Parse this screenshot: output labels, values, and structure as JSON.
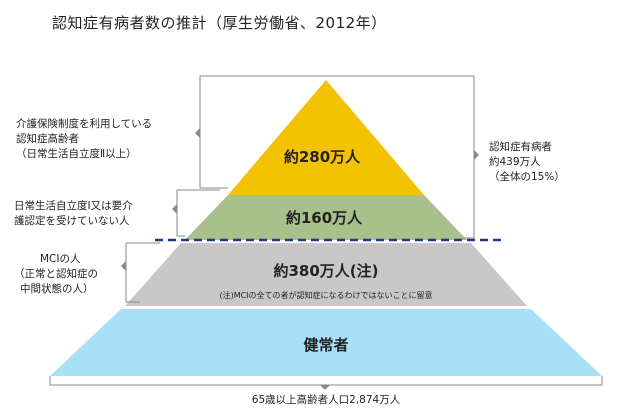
{
  "title": "認知症有病者数の推計（厚生労働省、2012年）",
  "layers": {
    "top": {
      "label": "約280万人",
      "color": "#f3c200"
    },
    "second": {
      "label": "約160万人",
      "color": "#a8c08c"
    },
    "mci": {
      "label": "約380万人(注)",
      "note": "(注)MCIの全ての者が認知症になるわけではないことに留意",
      "color": "#c8c8c8"
    },
    "healthy": {
      "label": "健常者",
      "color": "#a8e0f8"
    }
  },
  "left_notes": {
    "care": [
      "介護保険制度を利用している",
      "認知症高齢者",
      "（日常生活自立度Ⅱ以上）"
    ],
    "level1": [
      "日常生活自立度Ⅰ又は要介",
      "護認定を受けていない人"
    ],
    "mci": [
      "MCIの人",
      "（正常と認知症の",
      "中間状態の人）"
    ]
  },
  "right_note": [
    "認知症有病者",
    "約439万人",
    "（全体の15%）"
  ],
  "bottom_note": "65歳以上高齢者人口2,874万人"
}
